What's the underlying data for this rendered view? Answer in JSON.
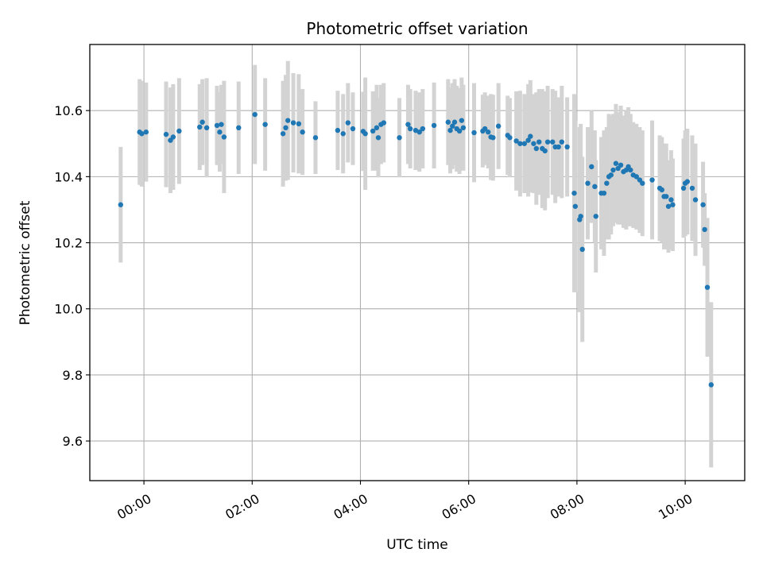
{
  "chart_data": {
    "type": "scatter",
    "title": "Photometric offset variation",
    "xlabel": "UTC time",
    "ylabel": "Photometric offset",
    "xlim": [
      -1.0,
      11.1
    ],
    "ylim": [
      9.48,
      10.8
    ],
    "grid": true,
    "x_unit": "hours UTC",
    "x_ticks": [
      {
        "value": 0,
        "label": "00:00"
      },
      {
        "value": 2,
        "label": "02:00"
      },
      {
        "value": 4,
        "label": "04:00"
      },
      {
        "value": 6,
        "label": "06:00"
      },
      {
        "value": 8,
        "label": "08:00"
      },
      {
        "value": 10,
        "label": "10:00"
      }
    ],
    "y_ticks": [
      {
        "value": 9.6,
        "label": "9.6"
      },
      {
        "value": 9.8,
        "label": "9.8"
      },
      {
        "value": 10.0,
        "label": "10.0"
      },
      {
        "value": 10.2,
        "label": "10.2"
      },
      {
        "value": 10.4,
        "label": "10.4"
      },
      {
        "value": 10.6,
        "label": "10.6"
      }
    ],
    "series": [
      {
        "name": "offset",
        "marker_color": "#1f77b4",
        "errorbar_color": "#d3d3d3",
        "x": [
          -0.43,
          -0.08,
          -0.04,
          0.04,
          0.41,
          0.49,
          0.54,
          0.65,
          1.03,
          1.08,
          1.16,
          1.35,
          1.4,
          1.43,
          1.48,
          1.75,
          2.05,
          2.24,
          2.57,
          2.62,
          2.66,
          2.76,
          2.86,
          2.93,
          3.17,
          3.58,
          3.68,
          3.77,
          3.86,
          4.05,
          4.09,
          4.23,
          4.3,
          4.33,
          4.38,
          4.43,
          4.72,
          4.88,
          4.92,
          5.02,
          5.09,
          5.15,
          5.36,
          5.62,
          5.66,
          5.7,
          5.74,
          5.78,
          5.83,
          5.87,
          5.9,
          6.1,
          6.26,
          6.3,
          6.36,
          6.41,
          6.45,
          6.55,
          6.72,
          6.76,
          6.88,
          6.95,
          7.03,
          7.1,
          7.14,
          7.2,
          7.25,
          7.3,
          7.36,
          7.41,
          7.46,
          7.55,
          7.6,
          7.66,
          7.72,
          7.82,
          7.95,
          7.97,
          8.05,
          8.07,
          8.1,
          8.2,
          8.27,
          8.33,
          8.35,
          8.45,
          8.5,
          8.55,
          8.59,
          8.63,
          8.67,
          8.72,
          8.76,
          8.81,
          8.86,
          8.91,
          8.95,
          8.99,
          9.04,
          9.1,
          9.16,
          9.21,
          9.39,
          9.53,
          9.57,
          9.61,
          9.65,
          9.69,
          9.74,
          9.77,
          9.97,
          10.0,
          10.04,
          10.13,
          10.19,
          10.33,
          10.36,
          10.41,
          10.48
        ],
        "y": [
          10.315,
          10.535,
          10.53,
          10.535,
          10.528,
          10.51,
          10.52,
          10.538,
          10.55,
          10.565,
          10.548,
          10.555,
          10.535,
          10.558,
          10.52,
          10.548,
          10.588,
          10.558,
          10.53,
          10.548,
          10.57,
          10.563,
          10.56,
          10.535,
          10.518,
          10.54,
          10.53,
          10.563,
          10.545,
          10.537,
          10.53,
          10.538,
          10.548,
          10.518,
          10.558,
          10.563,
          10.518,
          10.558,
          10.545,
          10.54,
          10.535,
          10.545,
          10.555,
          10.565,
          10.54,
          10.553,
          10.565,
          10.545,
          10.538,
          10.57,
          10.548,
          10.533,
          10.538,
          10.545,
          10.535,
          10.52,
          10.518,
          10.553,
          10.525,
          10.518,
          10.508,
          10.5,
          10.5,
          10.51,
          10.522,
          10.5,
          10.485,
          10.505,
          10.485,
          10.478,
          10.505,
          10.505,
          10.49,
          10.49,
          10.505,
          10.49,
          10.35,
          10.31,
          10.27,
          10.28,
          10.18,
          10.38,
          10.43,
          10.37,
          10.28,
          10.35,
          10.35,
          10.38,
          10.4,
          10.405,
          10.42,
          10.44,
          10.425,
          10.435,
          10.415,
          10.42,
          10.43,
          10.42,
          10.405,
          10.4,
          10.39,
          10.38,
          10.39,
          10.365,
          10.36,
          10.34,
          10.34,
          10.31,
          10.33,
          10.315,
          10.365,
          10.38,
          10.385,
          10.365,
          10.33,
          10.315,
          10.24,
          10.065,
          9.77
        ],
        "err": [
          0.175,
          0.16,
          0.16,
          0.15,
          0.16,
          0.16,
          0.16,
          0.16,
          0.13,
          0.13,
          0.15,
          0.12,
          0.12,
          0.12,
          0.17,
          0.14,
          0.15,
          0.14,
          0.16,
          0.16,
          0.18,
          0.15,
          0.15,
          0.13,
          0.11,
          0.12,
          0.12,
          0.12,
          0.11,
          0.12,
          0.17,
          0.12,
          0.13,
          0.12,
          0.12,
          0.12,
          0.12,
          0.12,
          0.12,
          0.12,
          0.12,
          0.12,
          0.13,
          0.13,
          0.13,
          0.13,
          0.13,
          0.13,
          0.13,
          0.13,
          0.13,
          0.15,
          0.11,
          0.11,
          0.11,
          0.13,
          0.13,
          0.13,
          0.12,
          0.12,
          0.15,
          0.16,
          0.15,
          0.17,
          0.17,
          0.15,
          0.17,
          0.16,
          0.18,
          0.18,
          0.17,
          0.16,
          0.17,
          0.15,
          0.17,
          0.15,
          0.3,
          0.26,
          0.28,
          0.28,
          0.28,
          0.17,
          0.17,
          0.17,
          0.17,
          0.17,
          0.19,
          0.17,
          0.19,
          0.18,
          0.17,
          0.18,
          0.17,
          0.18,
          0.17,
          0.18,
          0.18,
          0.17,
          0.16,
          0.16,
          0.16,
          0.16,
          0.18,
          0.16,
          0.16,
          0.16,
          0.16,
          0.14,
          0.15,
          0.14,
          0.15,
          0.16,
          0.16,
          0.16,
          0.17,
          0.13,
          0.11,
          0.21,
          0.25
        ]
      }
    ]
  }
}
